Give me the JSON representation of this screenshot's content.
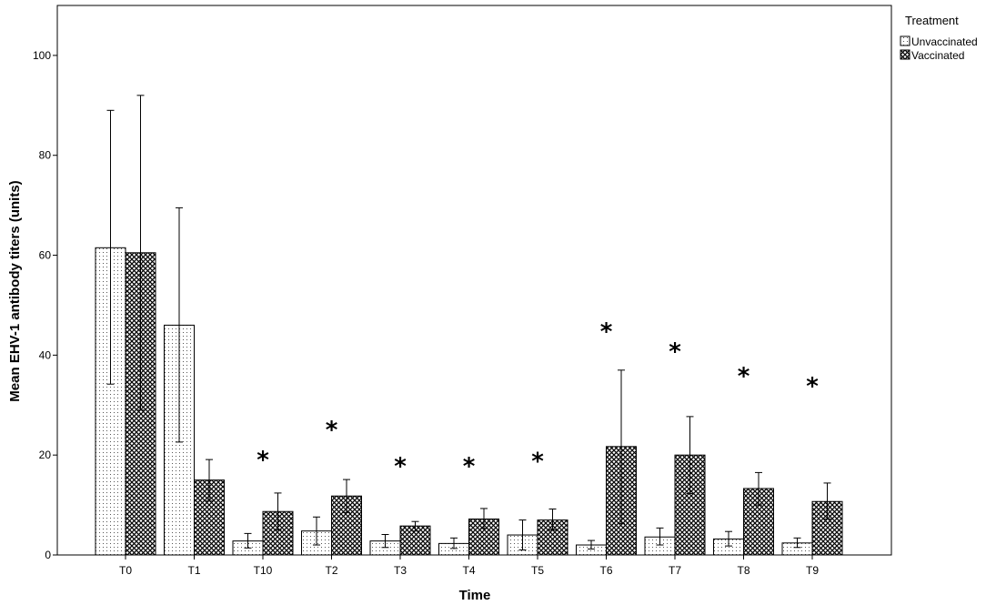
{
  "chart_data": {
    "type": "bar",
    "xlabel": "Time",
    "ylabel": "Mean EHV-1 antibody titers (units)",
    "ylim": [
      0,
      110
    ],
    "yticks": [
      0,
      20,
      40,
      60,
      80,
      100
    ],
    "categories": [
      "T0",
      "T1",
      "T10",
      "T2",
      "T3",
      "T4",
      "T5",
      "T6",
      "T7",
      "T8",
      "T9"
    ],
    "legend": {
      "title": "Treatment",
      "position": "top-right"
    },
    "series": [
      {
        "name": "Unvaccinated",
        "pattern": "dots",
        "values": [
          61.5,
          46.0,
          2.8,
          4.8,
          2.8,
          2.3,
          4.0,
          2.0,
          3.6,
          3.2,
          2.4
        ],
        "error_low": [
          34.2,
          22.6,
          1.4,
          2.0,
          1.5,
          1.3,
          1.0,
          1.2,
          2.0,
          1.8,
          1.5
        ],
        "error_high": [
          89.0,
          69.5,
          4.3,
          7.6,
          4.1,
          3.4,
          7.0,
          2.9,
          5.4,
          4.7,
          3.4
        ]
      },
      {
        "name": "Vaccinated",
        "pattern": "crosshatch",
        "values": [
          60.5,
          15.0,
          8.7,
          11.8,
          5.8,
          7.2,
          7.0,
          21.7,
          20.0,
          13.3,
          10.7
        ],
        "error_low": [
          29.0,
          10.8,
          5.0,
          8.5,
          4.8,
          5.3,
          5.0,
          6.3,
          12.3,
          10.0,
          7.2
        ],
        "error_high": [
          92.0,
          19.1,
          12.4,
          15.1,
          6.7,
          9.3,
          9.2,
          37.0,
          27.7,
          16.5,
          14.4
        ]
      }
    ],
    "annotations": [
      {
        "category": "T10",
        "text": "*",
        "y": 19.5
      },
      {
        "category": "T2",
        "text": "*",
        "y": 25.5
      },
      {
        "category": "T3",
        "text": "*",
        "y": 18.2
      },
      {
        "category": "T4",
        "text": "*",
        "y": 18.2
      },
      {
        "category": "T5",
        "text": "*",
        "y": 19.2
      },
      {
        "category": "T6",
        "text": "*",
        "y": 45.2
      },
      {
        "category": "T7",
        "text": "*",
        "y": 41.2
      },
      {
        "category": "T8",
        "text": "*",
        "y": 36.2
      },
      {
        "category": "T9",
        "text": "*",
        "y": 34.2
      }
    ],
    "grid": false
  }
}
